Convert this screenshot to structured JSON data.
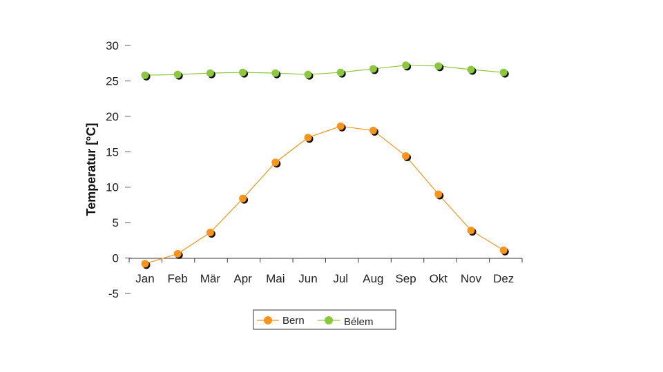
{
  "chart_data": {
    "type": "line",
    "title": "",
    "xlabel": "",
    "ylabel": "Temperatur [°C]",
    "categories": [
      "Jan",
      "Feb",
      "Mär",
      "Apr",
      "Mai",
      "Jun",
      "Jul",
      "Aug",
      "Sep",
      "Okt",
      "Nov",
      "Dez"
    ],
    "ylim": [
      -5,
      30
    ],
    "yticks": [
      "30",
      "25",
      "20",
      "15",
      "10",
      "5",
      "0",
      "-5"
    ],
    "grid": false,
    "legend": "bottom",
    "series": [
      {
        "name": "Bern",
        "color": "#f7941d",
        "values": [
          -0.8,
          0.6,
          3.6,
          8.4,
          13.5,
          17.0,
          18.6,
          18.0,
          14.4,
          9.0,
          3.9,
          1.1
        ]
      },
      {
        "name": "Bélem",
        "color": "#8dc63f",
        "values": [
          25.8,
          25.9,
          26.1,
          26.2,
          26.1,
          25.9,
          26.2,
          26.7,
          27.2,
          27.1,
          26.6,
          26.2
        ]
      }
    ]
  }
}
